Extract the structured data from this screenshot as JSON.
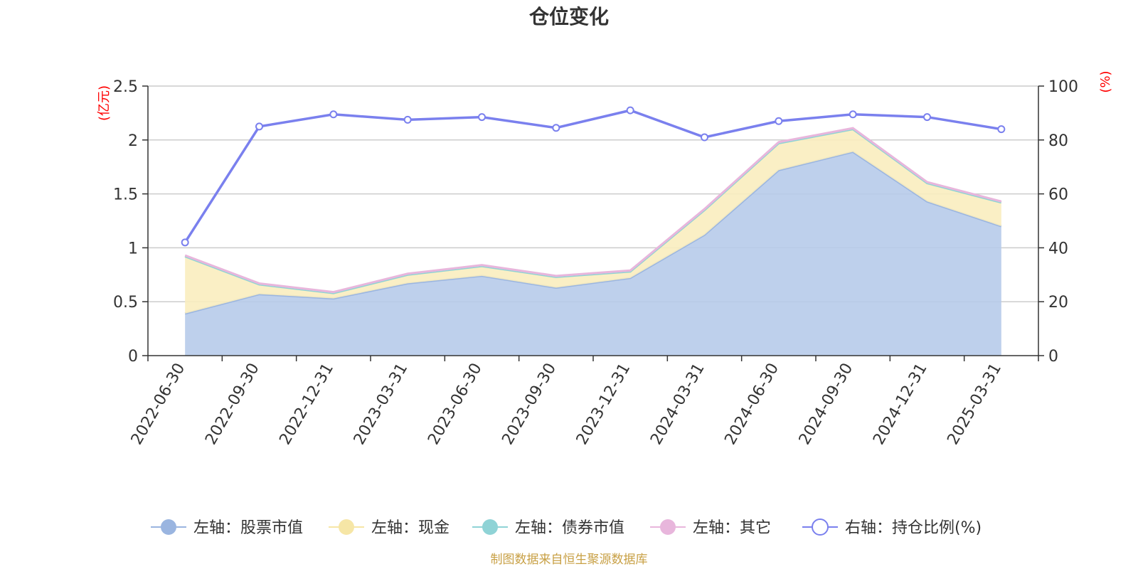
{
  "chart_data": {
    "type": "area",
    "title": "仓位变化",
    "left_axis_unit": "(亿元)",
    "right_axis_unit": "(%)",
    "categories": [
      "2022-06-30",
      "2022-09-30",
      "2022-12-31",
      "2023-03-31",
      "2023-06-30",
      "2023-09-30",
      "2023-12-31",
      "2024-03-31",
      "2024-06-30",
      "2024-09-30",
      "2024-12-31",
      "2025-03-31"
    ],
    "left_ylim": [
      0,
      2.5
    ],
    "left_ticks": [
      "0",
      "0.5",
      "1",
      "1.5",
      "2",
      "2.5"
    ],
    "right_ylim": [
      0,
      100
    ],
    "right_ticks": [
      "0",
      "20",
      "40",
      "60",
      "80",
      "100"
    ],
    "grid": true,
    "legend_position": "bottom",
    "series": [
      {
        "name": "左轴：股票市值",
        "axis": "left",
        "kind": "stacked-area",
        "color": "#9ab5e0",
        "fill": "#b7cbea",
        "values": [
          0.39,
          0.57,
          0.53,
          0.67,
          0.74,
          0.63,
          0.72,
          1.12,
          1.72,
          1.89,
          1.43,
          1.2
        ]
      },
      {
        "name": "左轴：现金",
        "axis": "left",
        "kind": "stacked-area",
        "color": "#f6e6a6",
        "fill": "#faedbf",
        "values": [
          0.53,
          0.09,
          0.05,
          0.08,
          0.09,
          0.1,
          0.06,
          0.23,
          0.25,
          0.21,
          0.17,
          0.22
        ]
      },
      {
        "name": "左轴：债券市值",
        "axis": "left",
        "kind": "stacked-area",
        "color": "#8fd3d6",
        "fill": "#a8dde0",
        "values": [
          0,
          0,
          0,
          0,
          0,
          0,
          0,
          0,
          0,
          0,
          0,
          0
        ]
      },
      {
        "name": "左轴：其它",
        "axis": "left",
        "kind": "stacked-area",
        "color": "#e8b6dc",
        "fill": "#f0cce8",
        "values": [
          0.01,
          0.01,
          0.01,
          0.01,
          0.01,
          0.01,
          0.01,
          0.01,
          0.01,
          0.01,
          0.01,
          0.01
        ]
      },
      {
        "name": "右轴：持仓比例(%)",
        "axis": "right",
        "kind": "line",
        "color": "#7a80ee",
        "values": [
          42,
          85,
          89.5,
          87.5,
          88.5,
          84.5,
          91,
          81,
          87,
          89.5,
          88.5,
          84
        ]
      }
    ],
    "source": "制图数据来自恒生聚源数据库"
  }
}
